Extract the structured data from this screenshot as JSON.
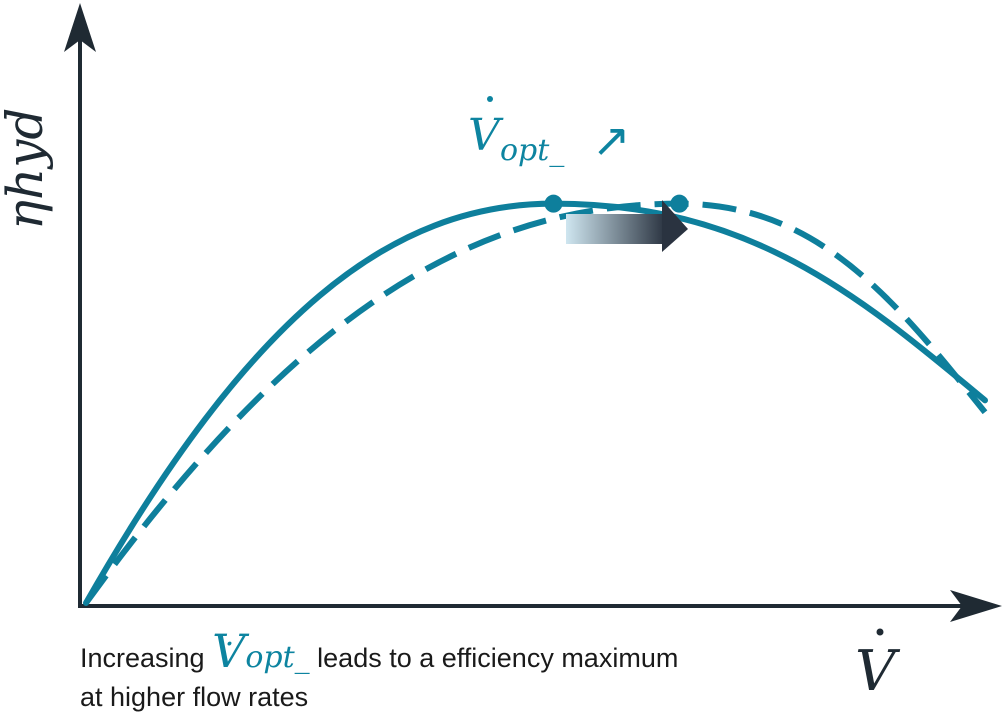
{
  "colors": {
    "axis": "#1f2a33",
    "curve": "#0e7f9c",
    "arrow_dark": "#2a3340",
    "text": "#1a1a1a"
  },
  "chart_data": {
    "type": "line",
    "ylabel": "ηhyd",
    "xlabel": "V",
    "annotation": {
      "symbol": "V",
      "subscript": "opt_",
      "suffix": "↗"
    },
    "caption": {
      "before": "Increasing",
      "symbol": "V",
      "subscript": "opt_",
      "after": "leads to a efficiency maximum",
      "line2": "at higher flow rates"
    },
    "series": [
      {
        "style": "solid",
        "x": [
          0,
          0.52,
          1.0
        ],
        "y": [
          0,
          0.67,
          0.34
        ]
      },
      {
        "style": "dashed",
        "x": [
          0,
          0.66,
          1.0
        ],
        "y": [
          0,
          0.67,
          0.32
        ]
      }
    ],
    "optima": [
      {
        "series": "solid",
        "x": 0.52,
        "y": 0.67
      },
      {
        "series": "dashed",
        "x": 0.66,
        "y": 0.67
      }
    ]
  }
}
